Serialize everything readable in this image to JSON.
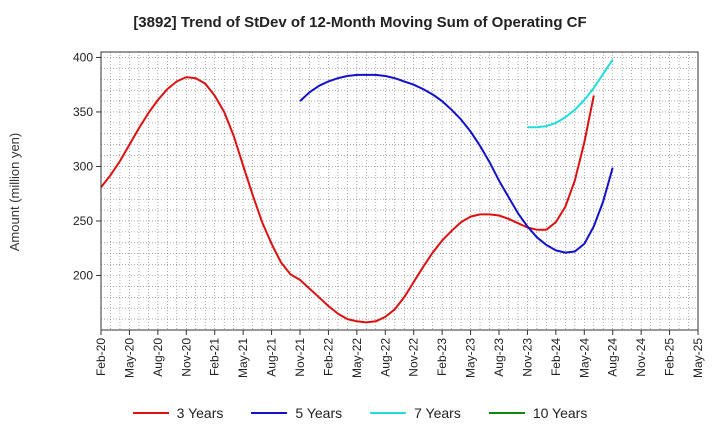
{
  "chart_data": {
    "type": "line",
    "title": "[3892]  Trend of StDev of 12-Month Moving Sum of Operating CF",
    "ylabel": "Amount (million yen)",
    "xlabel": "",
    "ylim": [
      150,
      405
    ],
    "yticks": [
      200,
      250,
      300,
      350,
      400
    ],
    "grid": true,
    "legend_position": "bottom",
    "x_start": "2020-02",
    "x_end": "2025-05",
    "xticks": [
      "Feb-20",
      "May-20",
      "Aug-20",
      "Nov-20",
      "Feb-21",
      "May-21",
      "Aug-21",
      "Nov-21",
      "Feb-22",
      "May-22",
      "Aug-22",
      "Nov-22",
      "Feb-23",
      "May-23",
      "Aug-23",
      "Nov-23",
      "Feb-24",
      "May-24",
      "Aug-24",
      "Nov-24",
      "Feb-25",
      "May-25"
    ],
    "series": [
      {
        "name": "3 Years",
        "color": "#dd1111",
        "points": [
          [
            "2020-02",
            281
          ],
          [
            "2020-03",
            292
          ],
          [
            "2020-04",
            305
          ],
          [
            "2020-05",
            320
          ],
          [
            "2020-06",
            335
          ],
          [
            "2020-07",
            349
          ],
          [
            "2020-08",
            361
          ],
          [
            "2020-09",
            371
          ],
          [
            "2020-10",
            378
          ],
          [
            "2020-11",
            382
          ],
          [
            "2020-12",
            381
          ],
          [
            "2021-01",
            376
          ],
          [
            "2021-02",
            365
          ],
          [
            "2021-03",
            350
          ],
          [
            "2021-04",
            328
          ],
          [
            "2021-05",
            301
          ],
          [
            "2021-06",
            274
          ],
          [
            "2021-07",
            249
          ],
          [
            "2021-08",
            229
          ],
          [
            "2021-09",
            212
          ],
          [
            "2021-10",
            201
          ],
          [
            "2021-11",
            196
          ],
          [
            "2021-12",
            188
          ],
          [
            "2022-01",
            180
          ],
          [
            "2022-02",
            172
          ],
          [
            "2022-03",
            165
          ],
          [
            "2022-04",
            160
          ],
          [
            "2022-05",
            158
          ],
          [
            "2022-06",
            157
          ],
          [
            "2022-07",
            158
          ],
          [
            "2022-08",
            162
          ],
          [
            "2022-09",
            169
          ],
          [
            "2022-10",
            180
          ],
          [
            "2022-11",
            194
          ],
          [
            "2022-12",
            208
          ],
          [
            "2023-01",
            221
          ],
          [
            "2023-02",
            232
          ],
          [
            "2023-03",
            241
          ],
          [
            "2023-04",
            249
          ],
          [
            "2023-05",
            254
          ],
          [
            "2023-06",
            256
          ],
          [
            "2023-07",
            256
          ],
          [
            "2023-08",
            255
          ],
          [
            "2023-09",
            252
          ],
          [
            "2023-10",
            248
          ],
          [
            "2023-11",
            244
          ],
          [
            "2023-12",
            242
          ],
          [
            "2024-01",
            242
          ],
          [
            "2024-02",
            249
          ],
          [
            "2024-03",
            263
          ],
          [
            "2024-04",
            287
          ],
          [
            "2024-05",
            322
          ],
          [
            "2024-06",
            365
          ]
        ]
      },
      {
        "name": "5 Years",
        "color": "#1111cc",
        "points": [
          [
            "2021-11",
            360
          ],
          [
            "2021-12",
            368
          ],
          [
            "2022-01",
            374
          ],
          [
            "2022-02",
            378
          ],
          [
            "2022-03",
            381
          ],
          [
            "2022-04",
            383
          ],
          [
            "2022-05",
            384
          ],
          [
            "2022-06",
            384
          ],
          [
            "2022-07",
            384
          ],
          [
            "2022-08",
            383
          ],
          [
            "2022-09",
            381
          ],
          [
            "2022-10",
            378
          ],
          [
            "2022-11",
            375
          ],
          [
            "2022-12",
            371
          ],
          [
            "2023-01",
            366
          ],
          [
            "2023-02",
            360
          ],
          [
            "2023-03",
            352
          ],
          [
            "2023-04",
            343
          ],
          [
            "2023-05",
            332
          ],
          [
            "2023-06",
            319
          ],
          [
            "2023-07",
            304
          ],
          [
            "2023-08",
            287
          ],
          [
            "2023-09",
            272
          ],
          [
            "2023-10",
            257
          ],
          [
            "2023-11",
            245
          ],
          [
            "2023-12",
            235
          ],
          [
            "2024-01",
            228
          ],
          [
            "2024-02",
            223
          ],
          [
            "2024-03",
            221
          ],
          [
            "2024-04",
            222
          ],
          [
            "2024-05",
            229
          ],
          [
            "2024-06",
            245
          ],
          [
            "2024-07",
            268
          ],
          [
            "2024-08",
            299
          ]
        ]
      },
      {
        "name": "7 Years",
        "color": "#22dddd",
        "points": [
          [
            "2023-11",
            336
          ],
          [
            "2023-12",
            336
          ],
          [
            "2024-01",
            337
          ],
          [
            "2024-02",
            340
          ],
          [
            "2024-03",
            345
          ],
          [
            "2024-04",
            352
          ],
          [
            "2024-05",
            361
          ],
          [
            "2024-06",
            372
          ],
          [
            "2024-07",
            385
          ],
          [
            "2024-08",
            398
          ]
        ]
      },
      {
        "name": "10 Years",
        "color": "#118811",
        "points": []
      }
    ]
  }
}
